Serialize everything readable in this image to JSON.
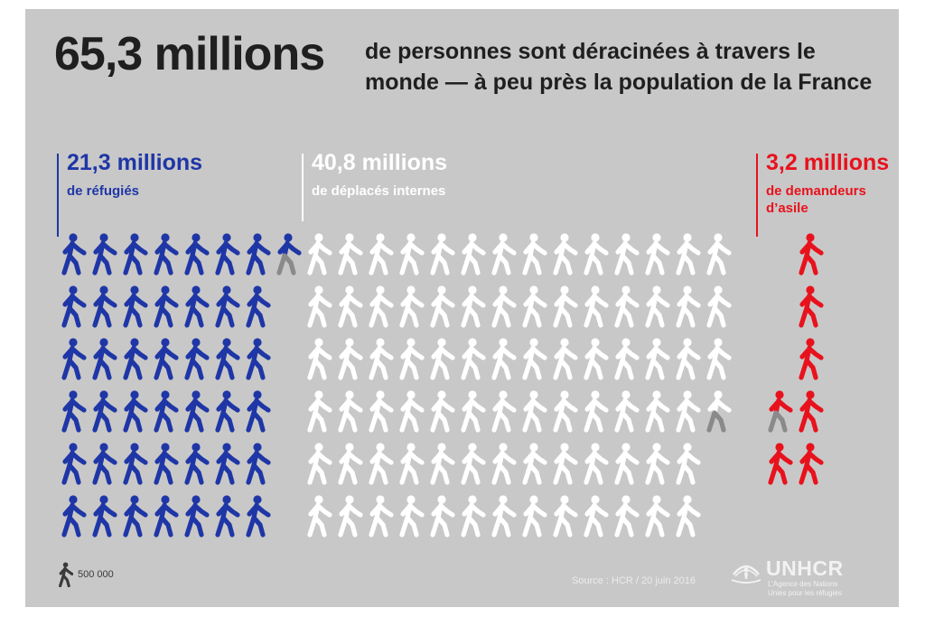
{
  "headline": {
    "big": "65,3 millions",
    "sub": "de personnes sont déracinées à travers le monde — à peu près la population de la France"
  },
  "groups": {
    "refugees": {
      "value": "21,3 millions",
      "label": "de réfugiés",
      "color": "#1f36a6"
    },
    "idps": {
      "value": "40,8 millions",
      "label": "de déplacés internes",
      "color": "#ffffff"
    },
    "asylum": {
      "value": "3,2 millions",
      "label": "de demandeurs d’asile",
      "color": "#e8121d"
    }
  },
  "legend": {
    "icon": "walking-person-icon",
    "unit_label": "500 000"
  },
  "source": "Source : HCR / 20 juin 2016",
  "logo": {
    "name": "UNHCR",
    "tagline": "L’Agence des Nations Unies pour les réfugiés",
    "icon": "unhcr-emblem-icon"
  },
  "chart_data": {
    "type": "pictogram",
    "unit": 500000,
    "total": "65,3 millions",
    "series": [
      {
        "name": "de réfugiés",
        "value_millions": 21.3,
        "icons": 42.6,
        "color": "#1f36a6"
      },
      {
        "name": "de déplacés internes",
        "value_millions": 40.8,
        "icons": 81.6,
        "color": "#ffffff"
      },
      {
        "name": "de demandeurs d’asile",
        "value_millions": 3.2,
        "icons": 6.4,
        "color": "#e8121d"
      }
    ],
    "partial_color": "#8a8a8a"
  }
}
